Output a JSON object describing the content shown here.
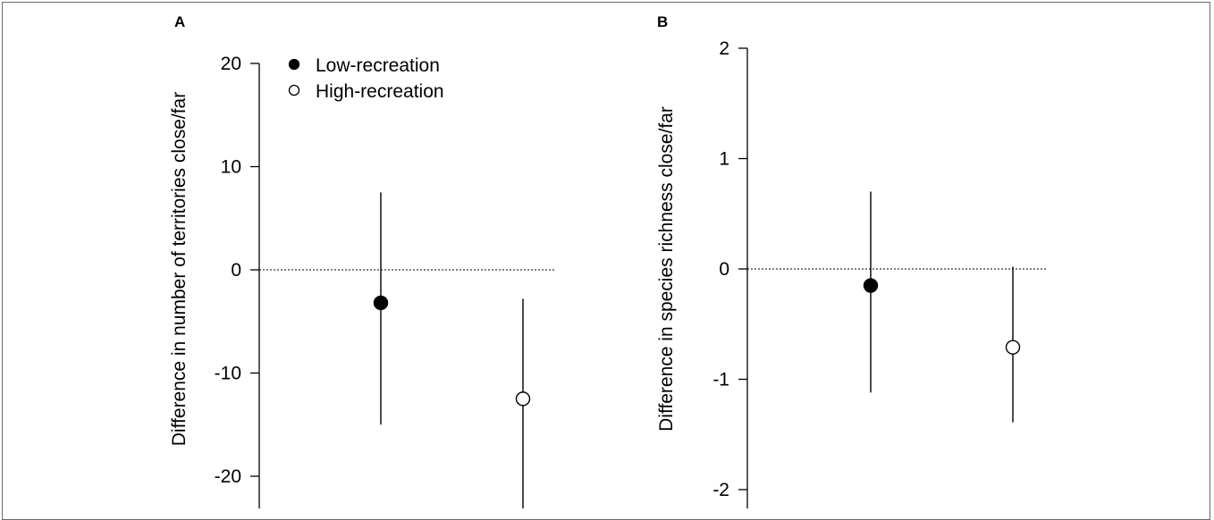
{
  "chart_data": [
    {
      "type": "scatter",
      "panel_label": "A",
      "ylabel": "Difference in number of territories close/far",
      "ylim": [
        -25,
        20
      ],
      "yticks": [
        20,
        10,
        0,
        -10,
        -20
      ],
      "reference_line": 0,
      "legend": {
        "placement": "top-left",
        "entries": [
          "Low-recreation",
          "High-recreation"
        ]
      },
      "series": [
        {
          "name": "Low-recreation",
          "marker": "filled-circle",
          "x": 1,
          "y": -3.2,
          "lower": -15.0,
          "upper": 7.5
        },
        {
          "name": "High-recreation",
          "marker": "open-circle",
          "x": 2,
          "y": -12.5,
          "lower": -25.0,
          "upper": -2.8
        }
      ]
    },
    {
      "type": "scatter",
      "panel_label": "B",
      "ylabel": "Difference in species richness close/far",
      "ylim": [
        -2.2,
        2
      ],
      "yticks": [
        2,
        1,
        0,
        -1,
        -2
      ],
      "reference_line": 0,
      "series": [
        {
          "name": "Low-recreation",
          "marker": "filled-circle",
          "x": 1,
          "y": -0.15,
          "lower": -1.12,
          "upper": 0.7
        },
        {
          "name": "High-recreation",
          "marker": "open-circle",
          "x": 2,
          "y": -0.71,
          "lower": -1.39,
          "upper": 0.02
        }
      ]
    }
  ]
}
